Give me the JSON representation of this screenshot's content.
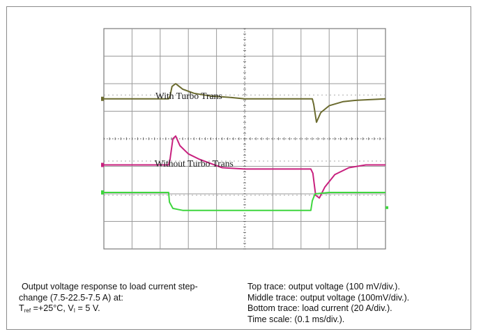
{
  "chart_data": {
    "type": "line",
    "title": "",
    "xlabel": "",
    "ylabel": "",
    "x_divisions": 10,
    "y_divisions": 8,
    "grid": true,
    "time_per_div_ms": 0.1,
    "series": [
      {
        "name": "With Turbo Trans",
        "color": "#6b6b2f",
        "baseline_div": 5.45,
        "points_div": [
          [
            0,
            0
          ],
          [
            2.3,
            0
          ],
          [
            2.35,
            0.1
          ],
          [
            2.42,
            0.45
          ],
          [
            2.55,
            0.55
          ],
          [
            2.8,
            0.35
          ],
          [
            3.2,
            0.2
          ],
          [
            3.8,
            0.1
          ],
          [
            4.5,
            0.05
          ],
          [
            5,
            0
          ],
          [
            7.4,
            0
          ],
          [
            7.45,
            -0.2
          ],
          [
            7.55,
            -0.85
          ],
          [
            7.7,
            -0.5
          ],
          [
            8,
            -0.25
          ],
          [
            8.5,
            -0.1
          ],
          [
            9,
            -0.05
          ],
          [
            10,
            0
          ]
        ]
      },
      {
        "name": "Without Turbo Trans",
        "color": "#c8207e",
        "baseline_div": 3.05,
        "points_div": [
          [
            0,
            0
          ],
          [
            2.3,
            0
          ],
          [
            2.35,
            0.2
          ],
          [
            2.45,
            0.95
          ],
          [
            2.55,
            1.05
          ],
          [
            2.7,
            0.7
          ],
          [
            3,
            0.4
          ],
          [
            3.4,
            0.2
          ],
          [
            3.8,
            0.05
          ],
          [
            4.2,
            -0.1
          ],
          [
            5,
            -0.15
          ],
          [
            7.35,
            -0.15
          ],
          [
            7.42,
            -0.3
          ],
          [
            7.52,
            -1.1
          ],
          [
            7.65,
            -1.2
          ],
          [
            7.85,
            -0.8
          ],
          [
            8.2,
            -0.35
          ],
          [
            8.7,
            -0.1
          ],
          [
            9.3,
            0
          ],
          [
            10,
            0
          ]
        ]
      },
      {
        "name": "",
        "color": "#3fd63f",
        "baseline_div": 2.05,
        "points_div": [
          [
            0,
            0
          ],
          [
            2.3,
            0
          ],
          [
            2.33,
            -0.35
          ],
          [
            2.45,
            -0.58
          ],
          [
            2.8,
            -0.65
          ],
          [
            5,
            -0.65
          ],
          [
            7.35,
            -0.65
          ],
          [
            7.4,
            -0.3
          ],
          [
            7.5,
            -0.05
          ],
          [
            8,
            0
          ],
          [
            10,
            0
          ]
        ]
      }
    ],
    "labels": {
      "with": "With Turbo Trans",
      "without": "Without Turbo Trans"
    }
  },
  "caption": {
    "left_line1": "Output voltage response to load current step-",
    "left_line2": "change (7.5-22.5-7.5 A) at:",
    "left_t": "T",
    "left_t_sub": "ref",
    "left_t_rest": " =+25°C, V",
    "left_v_sub": "I",
    "left_v_rest": " = 5 V.",
    "right": [
      "Top trace: output voltage (100 mV/div.).",
      "Middle trace: output voltage (100mV/div.).",
      "Bottom trace: load current (20 A/div.).",
      "Time scale: (0.1 ms/div.)."
    ]
  }
}
